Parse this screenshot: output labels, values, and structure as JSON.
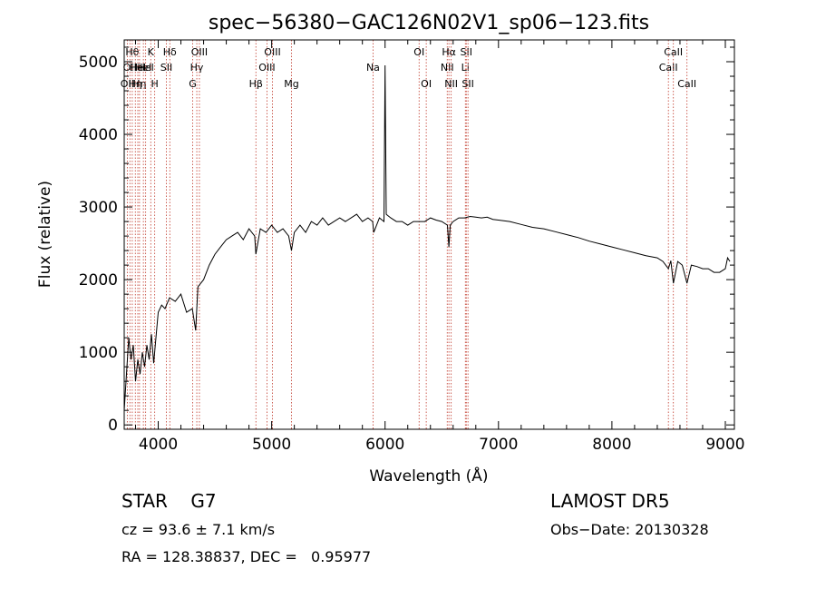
{
  "chart_data": {
    "type": "line",
    "title": "spec−56380−GAC126N02V1_sp06−123.fits",
    "xlabel": "Wavelength (Å)",
    "ylabel": "Flux (relative)",
    "xlim": [
      3700,
      9080
    ],
    "ylim": [
      -60,
      5300
    ],
    "xticks": [
      4000,
      5000,
      6000,
      7000,
      8000,
      9000
    ],
    "yticks": [
      0,
      1000,
      2000,
      3000,
      4000,
      5000
    ],
    "grid": false,
    "series": [
      {
        "x": [
          3700,
          3720,
          3740,
          3760,
          3780,
          3800,
          3820,
          3840,
          3860,
          3880,
          3900,
          3920,
          3940,
          3960,
          3980,
          4000,
          4030,
          4060,
          4100,
          4150,
          4200,
          4250,
          4300,
          4330,
          4350,
          4400,
          4450,
          4500,
          4550,
          4600,
          4650,
          4700,
          4750,
          4800,
          4850,
          4861,
          4900,
          4950,
          5000,
          5050,
          5100,
          5150,
          5175,
          5200,
          5250,
          5300,
          5350,
          5400,
          5450,
          5500,
          5550,
          5600,
          5650,
          5700,
          5750,
          5800,
          5850,
          5890,
          5900,
          5950,
          5990,
          6000,
          6010,
          6050,
          6100,
          6150,
          6200,
          6250,
          6300,
          6350,
          6400,
          6450,
          6500,
          6550,
          6563,
          6575,
          6600,
          6650,
          6700,
          6750,
          6800,
          6850,
          6900,
          6950,
          7000,
          7100,
          7200,
          7300,
          7400,
          7500,
          7600,
          7700,
          7800,
          7900,
          8000,
          8100,
          8200,
          8300,
          8400,
          8450,
          8498,
          8520,
          8542,
          8580,
          8620,
          8662,
          8700,
          8750,
          8800,
          8850,
          8900,
          8950,
          9000,
          9020,
          9040
        ],
        "values": [
          200,
          700,
          1200,
          900,
          1100,
          600,
          900,
          700,
          1000,
          800,
          1100,
          900,
          1250,
          850,
          1200,
          1550,
          1650,
          1600,
          1750,
          1700,
          1800,
          1550,
          1600,
          1300,
          1900,
          2000,
          2200,
          2350,
          2450,
          2550,
          2600,
          2650,
          2550,
          2700,
          2600,
          2350,
          2700,
          2650,
          2750,
          2650,
          2700,
          2600,
          2400,
          2650,
          2750,
          2650,
          2800,
          2750,
          2850,
          2750,
          2800,
          2850,
          2800,
          2850,
          2900,
          2800,
          2850,
          2800,
          2650,
          2850,
          2800,
          4950,
          2900,
          2850,
          2800,
          2800,
          2750,
          2800,
          2800,
          2800,
          2850,
          2820,
          2800,
          2750,
          2450,
          2750,
          2800,
          2850,
          2850,
          2870,
          2860,
          2850,
          2860,
          2830,
          2820,
          2800,
          2760,
          2720,
          2700,
          2660,
          2620,
          2580,
          2530,
          2490,
          2450,
          2410,
          2370,
          2330,
          2300,
          2250,
          2150,
          2260,
          1950,
          2250,
          2200,
          1950,
          2200,
          2180,
          2150,
          2150,
          2100,
          2100,
          2150,
          2300,
          2250
        ]
      }
    ],
    "spectral_lines": [
      {
        "w": 3727,
        "label": "OII",
        "row": 2
      },
      {
        "w": 3750,
        "label": "OII",
        "row": 1
      },
      {
        "w": 3771,
        "label": "Hθ",
        "row": 0
      },
      {
        "w": 3798,
        "label": "Hη",
        "row": 2
      },
      {
        "w": 3820,
        "label": "HeI",
        "row": 1
      },
      {
        "w": 3835,
        "label": "Hη",
        "row": 2
      },
      {
        "w": 3869,
        "label": "HeI",
        "row": 1
      },
      {
        "w": 3889,
        "label": "HeI",
        "row": 1
      },
      {
        "w": 3934,
        "label": "K",
        "row": 0
      },
      {
        "w": 3969,
        "label": "H",
        "row": 2
      },
      {
        "w": 4072,
        "label": "SII",
        "row": 1
      },
      {
        "w": 4102,
        "label": "Hδ",
        "row": 0
      },
      {
        "w": 4304,
        "label": "G",
        "row": 2
      },
      {
        "w": 4340,
        "label": "Hγ",
        "row": 1
      },
      {
        "w": 4363,
        "label": "OIII",
        "row": 0
      },
      {
        "w": 4861,
        "label": "Hβ",
        "row": 2
      },
      {
        "w": 4959,
        "label": "OIII",
        "row": 1
      },
      {
        "w": 5007,
        "label": "OIII",
        "row": 0
      },
      {
        "w": 5175,
        "label": "Mg",
        "row": 2
      },
      {
        "w": 5894,
        "label": "Na",
        "row": 1
      },
      {
        "w": 6300,
        "label": "OI",
        "row": 0
      },
      {
        "w": 6363,
        "label": "OI",
        "row": 2
      },
      {
        "w": 6548,
        "label": "NII",
        "row": 1
      },
      {
        "w": 6563,
        "label": "Hα",
        "row": 0
      },
      {
        "w": 6583,
        "label": "NII",
        "row": 2
      },
      {
        "w": 6708,
        "label": "Li",
        "row": 1
      },
      {
        "w": 6716,
        "label": "SII",
        "row": 0
      },
      {
        "w": 6731,
        "label": "SII",
        "row": 2
      },
      {
        "w": 8498,
        "label": "CaII",
        "row": 1
      },
      {
        "w": 8542,
        "label": "CaII",
        "row": 0
      },
      {
        "w": 8662,
        "label": "CaII",
        "row": 2
      }
    ]
  },
  "info": {
    "class_line": "STAR    G7",
    "velocity": "cz = 93.6 ± 7.1 km/s",
    "coords": "RA = 128.38837, DEC =   0.95977",
    "survey": "LAMOST DR5",
    "obs_date": "Obs−Date: 20130328"
  }
}
